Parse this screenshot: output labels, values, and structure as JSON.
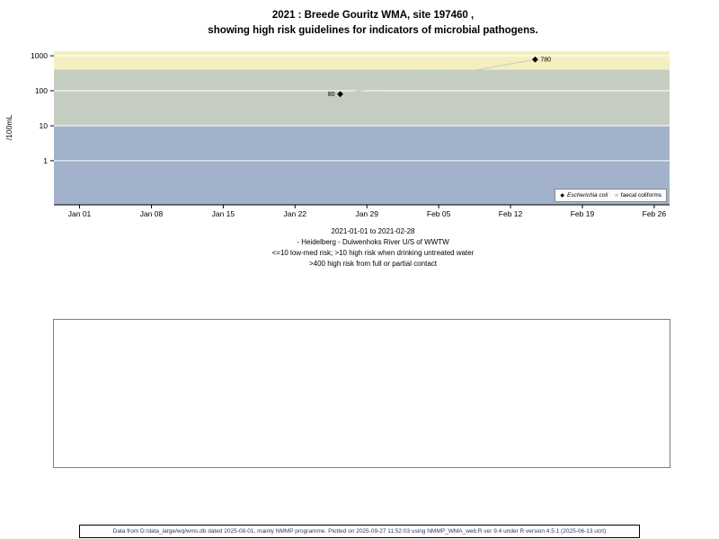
{
  "title": {
    "line1": "2021 : Breede Gouritz WMA, site 197460 ,",
    "line2": "showing high risk guidelines for indicators of microbial pathogens."
  },
  "chart_data": {
    "type": "scatter",
    "title": "2021 : Breede Gouritz WMA, site 197460 , showing high risk guidelines for indicators of microbial pathogens.",
    "ylabel": "/100mL",
    "xlabel": "",
    "y_scale": "log",
    "ylim": [
      0.055,
      1350
    ],
    "x_domain": [
      -2.5,
      57.5
    ],
    "x_ticks": [
      "Jan 01",
      "Jan 08",
      "Jan 15",
      "Jan 22",
      "Jan 29",
      "Feb 05",
      "Feb 12",
      "Feb 19",
      "Feb 26"
    ],
    "x_tick_days": [
      0,
      7,
      14,
      21,
      28,
      35,
      42,
      49,
      56
    ],
    "y_ticks": [
      1,
      10,
      100,
      1000
    ],
    "grid_on": true,
    "grid_color": "#ffffff",
    "line_color": "#cccccc",
    "legend_position": "bottom-right",
    "bands": [
      {
        "name": "high-risk-contact",
        "from": 400,
        "to": 1350,
        "color": "#f3efbe"
      },
      {
        "name": "high-risk-drinking",
        "from": 10,
        "to": 400,
        "color": "#c5cdc1"
      },
      {
        "name": "low-med-risk",
        "from": 0.055,
        "to": 10,
        "color": "#a2b2ca"
      }
    ],
    "series": [
      {
        "name": "Escherichia coli",
        "marker": "diamond",
        "color": "#000000",
        "points": [
          {
            "day": 25.4,
            "value": 80,
            "label": "80",
            "label_side": "left"
          },
          {
            "day": 44.4,
            "value": 780,
            "label": "780",
            "label_side": "right"
          }
        ]
      },
      {
        "name": "faecal coliforms",
        "marker": "open-circle",
        "color": "#000000",
        "points": []
      }
    ]
  },
  "legend": {
    "items": [
      {
        "label": "Escherichia coli",
        "marker": "diamond",
        "italic": true
      },
      {
        "label": "faecal coliforms",
        "marker": "open-circle",
        "italic": false
      }
    ]
  },
  "caption": {
    "line1": "2021-01-01 to 2021-02-28",
    "line2": "- Heidelberg - Duiwenhoks River U/S of WWTW",
    "line3": "<=10 low-med risk; >10 high risk when drinking untreated water",
    "line4": ">400 high risk from full or partial contact"
  },
  "footer": "Data from D:/data_large/wq/wms.db dated 2025-08-01, mainly NMMP programme. Plotted on 2025-09-27 11:52:03 using NMMP_WMA_web.R ver 9.4 under R version 4.5.1 (2025-06-13 ucrt)"
}
